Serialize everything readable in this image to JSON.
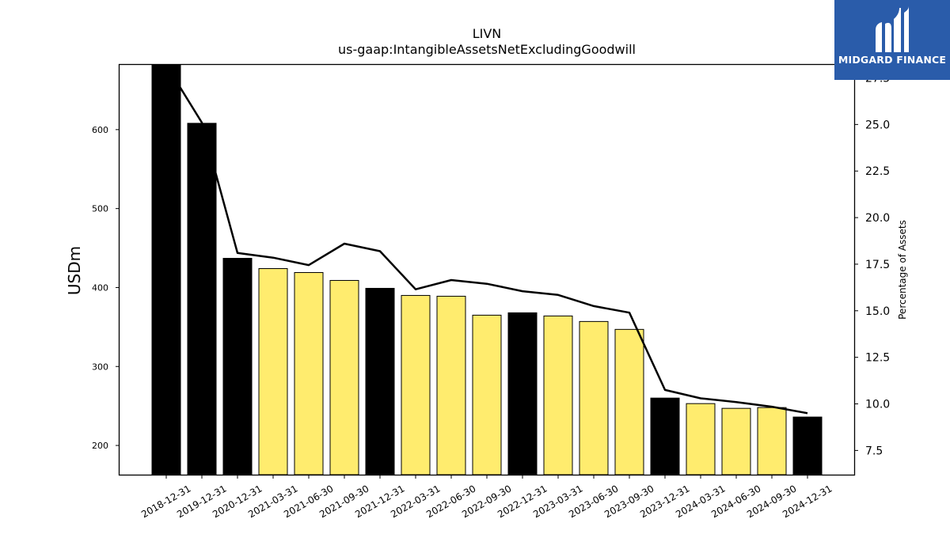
{
  "chart_data": {
    "type": "bar+line",
    "title": "LIVN",
    "subtitle": "us-gaap:IntangibleAssetsNetExcludingGoodwill",
    "ylabel_left": "USDm",
    "ylabel_right": "Percentage of Assets",
    "categories": [
      "2018-12-31",
      "2019-12-31",
      "2020-12-31",
      "2021-03-31",
      "2021-06-30",
      "2021-09-30",
      "2021-12-31",
      "2022-03-31",
      "2022-06-30",
      "2022-09-30",
      "2022-12-31",
      "2023-03-31",
      "2023-06-30",
      "2023-09-30",
      "2023-12-31",
      "2024-03-31",
      "2024-06-30",
      "2024-09-30",
      "2024-12-31"
    ],
    "bar_values": [
      682,
      608,
      437,
      424,
      419,
      409,
      399,
      390,
      389,
      365,
      368,
      364,
      357,
      347,
      260,
      253,
      247,
      248,
      236
    ],
    "bar_kinds": [
      "annual",
      "annual",
      "annual",
      "quarterly",
      "quarterly",
      "quarterly",
      "annual",
      "quarterly",
      "quarterly",
      "quarterly",
      "annual",
      "quarterly",
      "quarterly",
      "quarterly",
      "annual",
      "quarterly",
      "quarterly",
      "quarterly",
      "annual"
    ],
    "line_values": [
      28.2,
      25.1,
      18.1,
      17.85,
      17.45,
      18.6,
      18.2,
      16.15,
      16.65,
      16.45,
      16.05,
      15.85,
      15.25,
      14.9,
      10.75,
      10.3,
      10.1,
      9.85,
      9.5
    ],
    "ylim_left": [
      163,
      682
    ],
    "ylim_right": [
      6.2,
      28.2
    ],
    "yticks_left": [
      "200",
      "300",
      "400",
      "500",
      "600"
    ],
    "yticks_right": [
      "7.5",
      "10.0",
      "12.5",
      "15.0",
      "17.5",
      "20.0",
      "22.5",
      "25.0",
      "27.5"
    ],
    "colors": {
      "annual": "#000000",
      "quarterly": "#ffec6e",
      "line": "#000000"
    },
    "grid": false
  },
  "brand": {
    "logo_text": "MIDGARD FINANCE",
    "logo_color": "#2a5caa"
  }
}
